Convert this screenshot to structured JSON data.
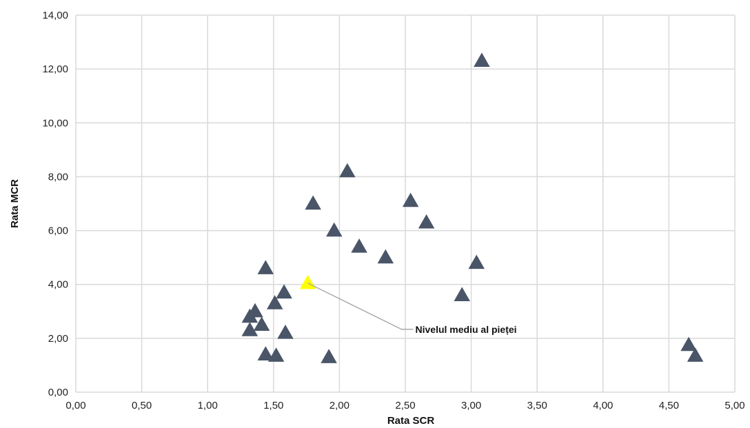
{
  "chart_data": {
    "type": "scatter",
    "xlabel": "Rata SCR",
    "ylabel": "Rata MCR",
    "xlim": [
      0,
      5
    ],
    "ylim": [
      0,
      14
    ],
    "x_ticks": [
      "0,00",
      "0,50",
      "1,00",
      "1,50",
      "2,00",
      "2,50",
      "3,00",
      "3,50",
      "4,00",
      "4,50",
      "5,00"
    ],
    "y_ticks": [
      "0,00",
      "2,00",
      "4,00",
      "6,00",
      "8,00",
      "10,00",
      "12,00",
      "14,00"
    ],
    "grid": true,
    "marker": "triangle",
    "colors": {
      "points": "#4a5568",
      "highlight": "#ffff00",
      "grid": "#d9d9d9",
      "leader": "#9a9a9a"
    },
    "series": [
      {
        "points": [
          {
            "x": 3.08,
            "y": 12.3
          },
          {
            "x": 2.06,
            "y": 8.2
          },
          {
            "x": 1.8,
            "y": 7.0
          },
          {
            "x": 2.54,
            "y": 7.1
          },
          {
            "x": 1.96,
            "y": 6.0
          },
          {
            "x": 2.66,
            "y": 6.3
          },
          {
            "x": 2.15,
            "y": 5.4
          },
          {
            "x": 2.35,
            "y": 5.0
          },
          {
            "x": 3.04,
            "y": 4.8
          },
          {
            "x": 1.44,
            "y": 4.6
          },
          {
            "x": 1.58,
            "y": 3.7
          },
          {
            "x": 2.93,
            "y": 3.6
          },
          {
            "x": 1.51,
            "y": 3.3
          },
          {
            "x": 1.36,
            "y": 3.0
          },
          {
            "x": 1.32,
            "y": 2.8
          },
          {
            "x": 1.41,
            "y": 2.5
          },
          {
            "x": 1.32,
            "y": 2.3
          },
          {
            "x": 1.59,
            "y": 2.2
          },
          {
            "x": 1.44,
            "y": 1.4
          },
          {
            "x": 1.52,
            "y": 1.35
          },
          {
            "x": 1.92,
            "y": 1.3
          },
          {
            "x": 4.65,
            "y": 1.75
          },
          {
            "x": 4.7,
            "y": 1.35
          }
        ]
      }
    ],
    "highlight_point": {
      "x": 1.76,
      "y": 4.05,
      "label": "Nivelul mediu al pieței"
    }
  }
}
